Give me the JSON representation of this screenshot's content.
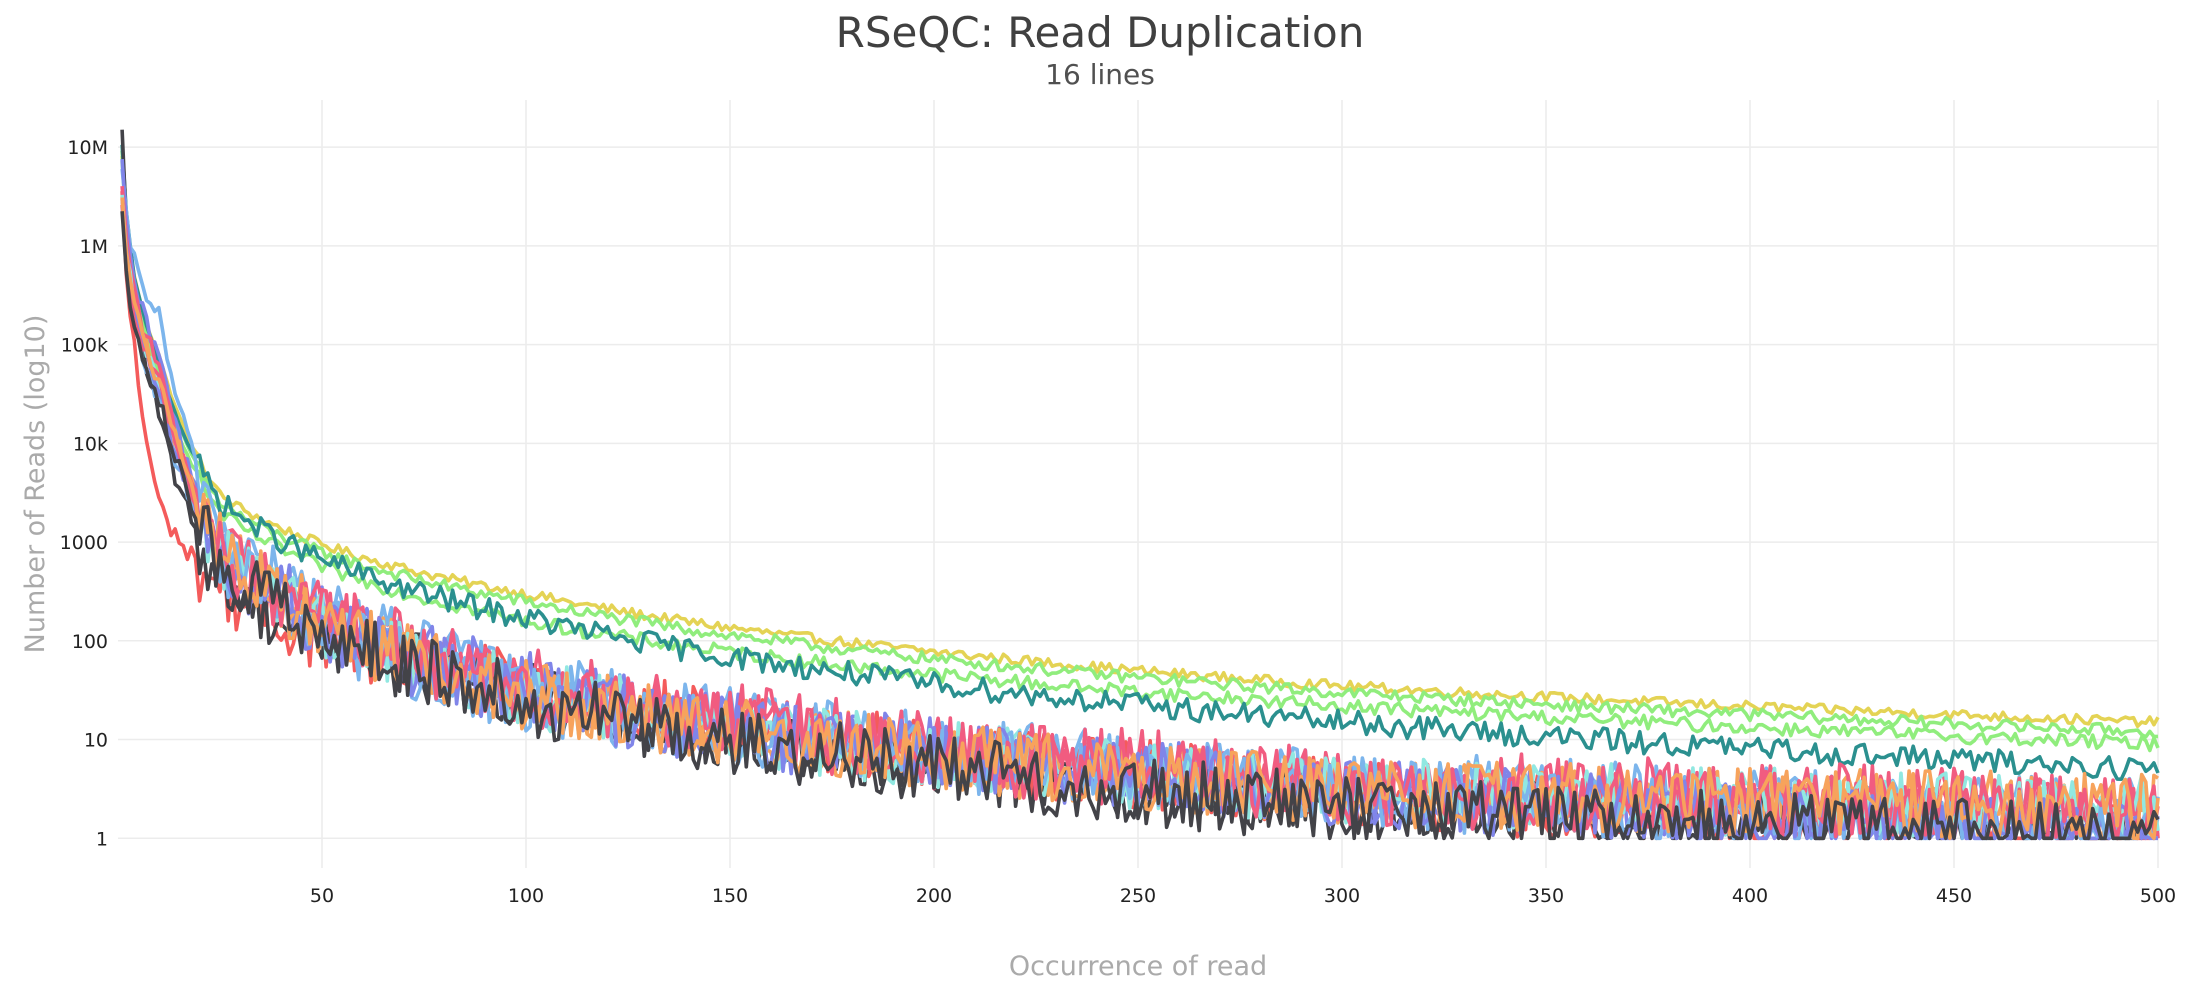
{
  "chart_data": {
    "type": "line",
    "title": "RSeQC: Read Duplication",
    "subtitle": "16 lines",
    "xlabel": "Occurrence of read",
    "ylabel": "Number of Reads (log10)",
    "xlim": [
      0,
      500
    ],
    "ylim": [
      0.5,
      30000000
    ],
    "y_scale": "log",
    "grid": true,
    "legend": "none",
    "x_ticks": [
      50,
      100,
      150,
      200,
      250,
      300,
      350,
      400,
      450,
      500
    ],
    "y_ticks": [
      {
        "value": 1,
        "label": "1"
      },
      {
        "value": 10,
        "label": "10"
      },
      {
        "value": 100,
        "label": "100"
      },
      {
        "value": 1000,
        "label": "1000"
      },
      {
        "value": 10000,
        "label": "10k"
      },
      {
        "value": 100000,
        "label": "100k"
      },
      {
        "value": 1000000,
        "label": "1M"
      },
      {
        "value": 10000000,
        "label": "10M"
      }
    ],
    "series_note": "Approximate shapes read from the plot; each series: color, y value at x=1, x=10, x=25, x=100 and x=500 (log-interpolated), plus noise amplitude in decades.",
    "series": [
      {
        "color": "#e4d354",
        "points": [
          [
            1,
            8000000
          ],
          [
            10,
            80000
          ],
          [
            25,
            3000
          ],
          [
            100,
            300
          ],
          [
            300,
            35
          ],
          [
            500,
            15
          ]
        ],
        "noise": 0.05
      },
      {
        "color": "#90ed7d",
        "points": [
          [
            1,
            9000000
          ],
          [
            10,
            60000
          ],
          [
            25,
            2500
          ],
          [
            100,
            250
          ],
          [
            300,
            30
          ],
          [
            500,
            12
          ]
        ],
        "noise": 0.06
      },
      {
        "color": "#90ed7d",
        "points": [
          [
            1,
            7000000
          ],
          [
            10,
            50000
          ],
          [
            25,
            2000
          ],
          [
            100,
            160
          ],
          [
            300,
            22
          ],
          [
            500,
            9
          ]
        ],
        "noise": 0.07
      },
      {
        "color": "#2b908f",
        "points": [
          [
            1,
            10000000
          ],
          [
            10,
            70000
          ],
          [
            25,
            2600
          ],
          [
            100,
            170
          ],
          [
            300,
            15
          ],
          [
            500,
            5
          ]
        ],
        "noise": 0.12
      },
      {
        "color": "#f45b5b",
        "points": [
          [
            1,
            3000000
          ],
          [
            4,
            100000
          ],
          [
            10,
            2500
          ],
          [
            25,
            350
          ],
          [
            100,
            35
          ],
          [
            300,
            3
          ],
          [
            500,
            1
          ]
        ],
        "noise": 0.35
      },
      {
        "color": "#434348",
        "points": [
          [
            1,
            15000000
          ],
          [
            10,
            20000
          ],
          [
            25,
            400
          ],
          [
            100,
            30
          ],
          [
            300,
            2
          ],
          [
            500,
            1
          ]
        ],
        "noise": 0.35
      },
      {
        "color": "#7cb5ec",
        "points": [
          [
            1,
            5000000
          ],
          [
            10,
            200000
          ],
          [
            25,
            1500
          ],
          [
            100,
            40
          ],
          [
            300,
            4
          ],
          [
            500,
            2
          ]
        ],
        "noise": 0.3
      },
      {
        "color": "#8085e9",
        "points": [
          [
            1,
            6000000
          ],
          [
            10,
            80000
          ],
          [
            25,
            1000
          ],
          [
            100,
            35
          ],
          [
            300,
            3
          ],
          [
            500,
            1
          ]
        ],
        "noise": 0.35
      },
      {
        "color": "#f7a35c",
        "points": [
          [
            1,
            4000000
          ],
          [
            10,
            50000
          ],
          [
            25,
            900
          ],
          [
            100,
            30
          ],
          [
            300,
            3
          ],
          [
            500,
            2
          ]
        ],
        "noise": 0.35
      },
      {
        "color": "#f15c80",
        "points": [
          [
            1,
            5000000
          ],
          [
            10,
            60000
          ],
          [
            25,
            1000
          ],
          [
            100,
            40
          ],
          [
            300,
            4
          ],
          [
            500,
            2
          ]
        ],
        "noise": 0.35
      },
      {
        "color": "#91e8e1",
        "points": [
          [
            1,
            4000000
          ],
          [
            10,
            40000
          ],
          [
            25,
            800
          ],
          [
            100,
            30
          ],
          [
            300,
            3
          ],
          [
            500,
            2
          ]
        ],
        "noise": 0.35
      },
      {
        "color": "#7cb5ec",
        "points": [
          [
            1,
            3000000
          ],
          [
            10,
            30000
          ],
          [
            25,
            700
          ],
          [
            100,
            25
          ],
          [
            300,
            3
          ],
          [
            500,
            1
          ]
        ],
        "noise": 0.35
      },
      {
        "color": "#8085e9",
        "points": [
          [
            1,
            3500000
          ],
          [
            10,
            35000
          ],
          [
            25,
            750
          ],
          [
            100,
            28
          ],
          [
            300,
            3
          ],
          [
            500,
            1
          ]
        ],
        "noise": 0.35
      },
      {
        "color": "#f15c80",
        "points": [
          [
            1,
            3000000
          ],
          [
            10,
            40000
          ],
          [
            25,
            800
          ],
          [
            100,
            30
          ],
          [
            300,
            3
          ],
          [
            500,
            2
          ]
        ],
        "noise": 0.35
      },
      {
        "color": "#f7a35c",
        "points": [
          [
            1,
            3500000
          ],
          [
            10,
            45000
          ],
          [
            25,
            850
          ],
          [
            100,
            28
          ],
          [
            300,
            3
          ],
          [
            500,
            2
          ]
        ],
        "noise": 0.35
      },
      {
        "color": "#434348",
        "points": [
          [
            1,
            2500000
          ],
          [
            10,
            30000
          ],
          [
            25,
            600
          ],
          [
            100,
            25
          ],
          [
            300,
            2
          ],
          [
            500,
            1
          ]
        ],
        "noise": 0.35
      }
    ]
  }
}
